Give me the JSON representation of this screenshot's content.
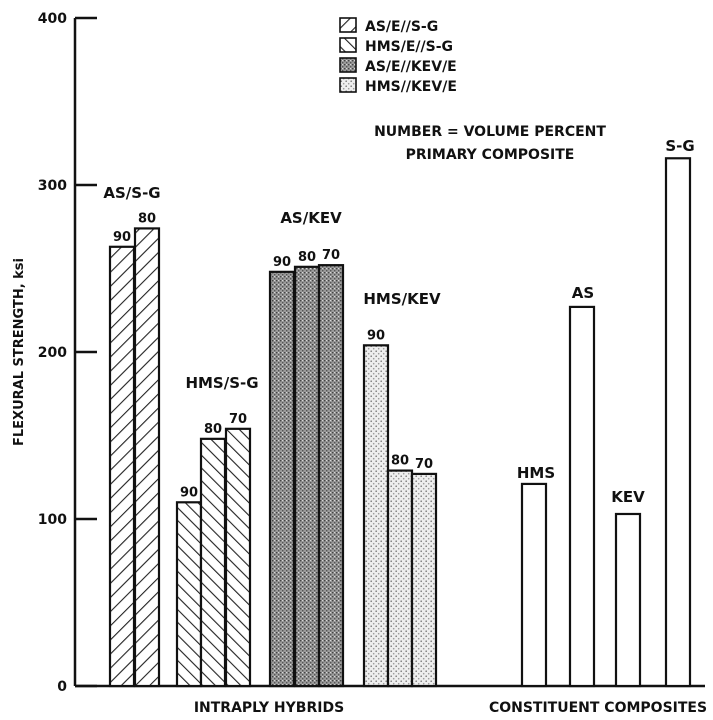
{
  "chart_data": {
    "type": "bar",
    "ylabel": "FLEXURAL STRENGTH, ksi",
    "ylim": [
      0,
      400
    ],
    "yticks": [
      0,
      100,
      200,
      300,
      400
    ],
    "grid": false,
    "legend": {
      "placement": "top-center",
      "entries": [
        {
          "label": "AS/E//S-G",
          "pattern": "hatch-forward"
        },
        {
          "label": "HMS/E//S-G",
          "pattern": "hatch-backward"
        },
        {
          "label": "AS/E//KEV/E",
          "pattern": "dense-stipple"
        },
        {
          "label": "HMS//KEV/E",
          "pattern": "dots"
        }
      ],
      "note": [
        "NUMBER = VOLUME PERCENT",
        "PRIMARY COMPOSITE"
      ]
    },
    "sections": [
      {
        "label": "INTRAPLY HYBRIDS"
      },
      {
        "label": "CONSTITUENT COMPOSITES"
      }
    ],
    "groups": [
      {
        "label": "AS/S-G",
        "pattern": "hatch-forward",
        "bars": [
          {
            "label": "90",
            "value": 263
          },
          {
            "label": "80",
            "value": 274
          }
        ]
      },
      {
        "label": "HMS/S-G",
        "pattern": "hatch-backward",
        "bars": [
          {
            "label": "90",
            "value": 110
          },
          {
            "label": "80",
            "value": 148
          },
          {
            "label": "70",
            "value": 154
          }
        ]
      },
      {
        "label": "AS/KEV",
        "pattern": "dense-stipple",
        "bars": [
          {
            "label": "90",
            "value": 248
          },
          {
            "label": "80",
            "value": 251
          },
          {
            "label": "70",
            "value": 252
          }
        ]
      },
      {
        "label": "HMS/KEV",
        "pattern": "dots",
        "bars": [
          {
            "label": "90",
            "value": 204
          },
          {
            "label": "80",
            "value": 129
          },
          {
            "label": "70",
            "value": 127
          }
        ]
      },
      {
        "label": "HMS",
        "pattern": "none",
        "bars": [
          {
            "label": "",
            "value": 121
          }
        ]
      },
      {
        "label": "AS",
        "pattern": "none",
        "bars": [
          {
            "label": "",
            "value": 227
          }
        ]
      },
      {
        "label": "KEV",
        "pattern": "none",
        "bars": [
          {
            "label": "",
            "value": 103
          }
        ]
      },
      {
        "label": "S-G",
        "pattern": "none",
        "bars": [
          {
            "label": "",
            "value": 316
          }
        ]
      }
    ]
  }
}
